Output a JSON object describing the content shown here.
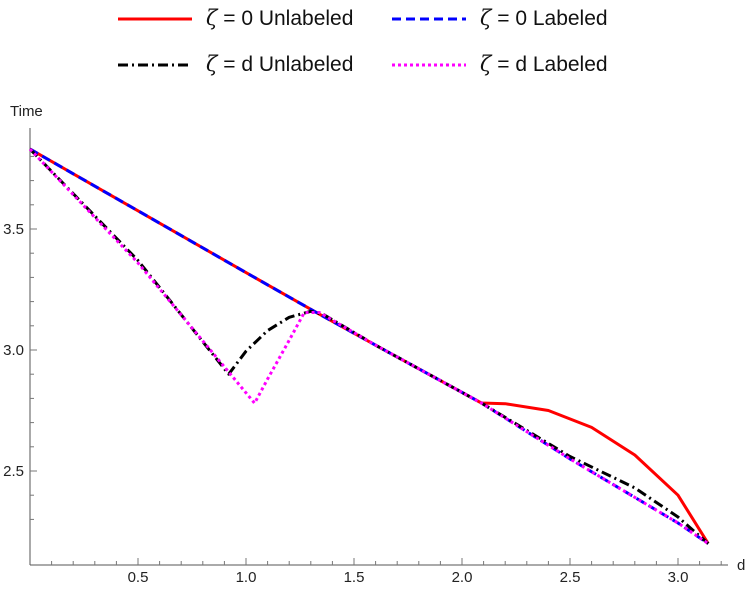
{
  "chart_data": {
    "type": "line",
    "title": "",
    "xlabel": "d",
    "ylabel": "Time",
    "xlim": [
      0,
      3.2
    ],
    "ylim": [
      2.2,
      3.9
    ],
    "x_ticks": [
      "0.5",
      "1.0",
      "1.5",
      "2.0",
      "2.5",
      "3.0"
    ],
    "y_ticks": [
      "2.5",
      "3.0",
      "3.5"
    ],
    "legend_position": "top",
    "grid": false,
    "series": [
      {
        "name": "ζ = 0 Unlabeled",
        "color": "#ff0000",
        "style": "solid",
        "points": [
          [
            0,
            3.83
          ],
          [
            0.5,
            3.575
          ],
          [
            1.0,
            3.32
          ],
          [
            1.34,
            3.148
          ],
          [
            1.6,
            3.02
          ],
          [
            2.09,
            2.781
          ],
          [
            2.2,
            2.778
          ],
          [
            2.4,
            2.75
          ],
          [
            2.6,
            2.68
          ],
          [
            2.8,
            2.566
          ],
          [
            3.0,
            2.4
          ],
          [
            3.14,
            2.2
          ]
        ]
      },
      {
        "name": "ζ = 0 Labeled",
        "color": "#0000ff",
        "style": "dashed",
        "points": [
          [
            0,
            3.83
          ],
          [
            0.5,
            3.575
          ],
          [
            1.0,
            3.32
          ],
          [
            1.34,
            3.148
          ],
          [
            1.6,
            3.02
          ],
          [
            2.09,
            2.781
          ],
          [
            2.5,
            2.55
          ],
          [
            3.0,
            2.285
          ],
          [
            3.14,
            2.2
          ]
        ]
      },
      {
        "name": "ζ = d Unlabeled",
        "color": "#000000",
        "style": "dashdot",
        "points": [
          [
            0,
            3.83
          ],
          [
            0.5,
            3.37
          ],
          [
            0.92,
            2.9
          ],
          [
            1.0,
            2.995
          ],
          [
            1.1,
            3.08
          ],
          [
            1.2,
            3.135
          ],
          [
            1.3,
            3.16
          ],
          [
            1.36,
            3.146
          ],
          [
            1.6,
            3.02
          ],
          [
            2.09,
            2.781
          ],
          [
            2.5,
            2.56
          ],
          [
            2.8,
            2.43
          ],
          [
            3.0,
            2.31
          ],
          [
            3.14,
            2.2
          ]
        ]
      },
      {
        "name": "ζ = d Labeled",
        "color": "#ff00ff",
        "style": "dotted",
        "points": [
          [
            0,
            3.83
          ],
          [
            0.5,
            3.36
          ],
          [
            1.04,
            2.78
          ],
          [
            1.1,
            2.88
          ],
          [
            1.2,
            3.04
          ],
          [
            1.27,
            3.155
          ],
          [
            1.34,
            3.155
          ],
          [
            1.6,
            3.02
          ],
          [
            2.09,
            2.781
          ],
          [
            2.5,
            2.55
          ],
          [
            3.0,
            2.285
          ],
          [
            3.14,
            2.2
          ]
        ]
      }
    ]
  }
}
